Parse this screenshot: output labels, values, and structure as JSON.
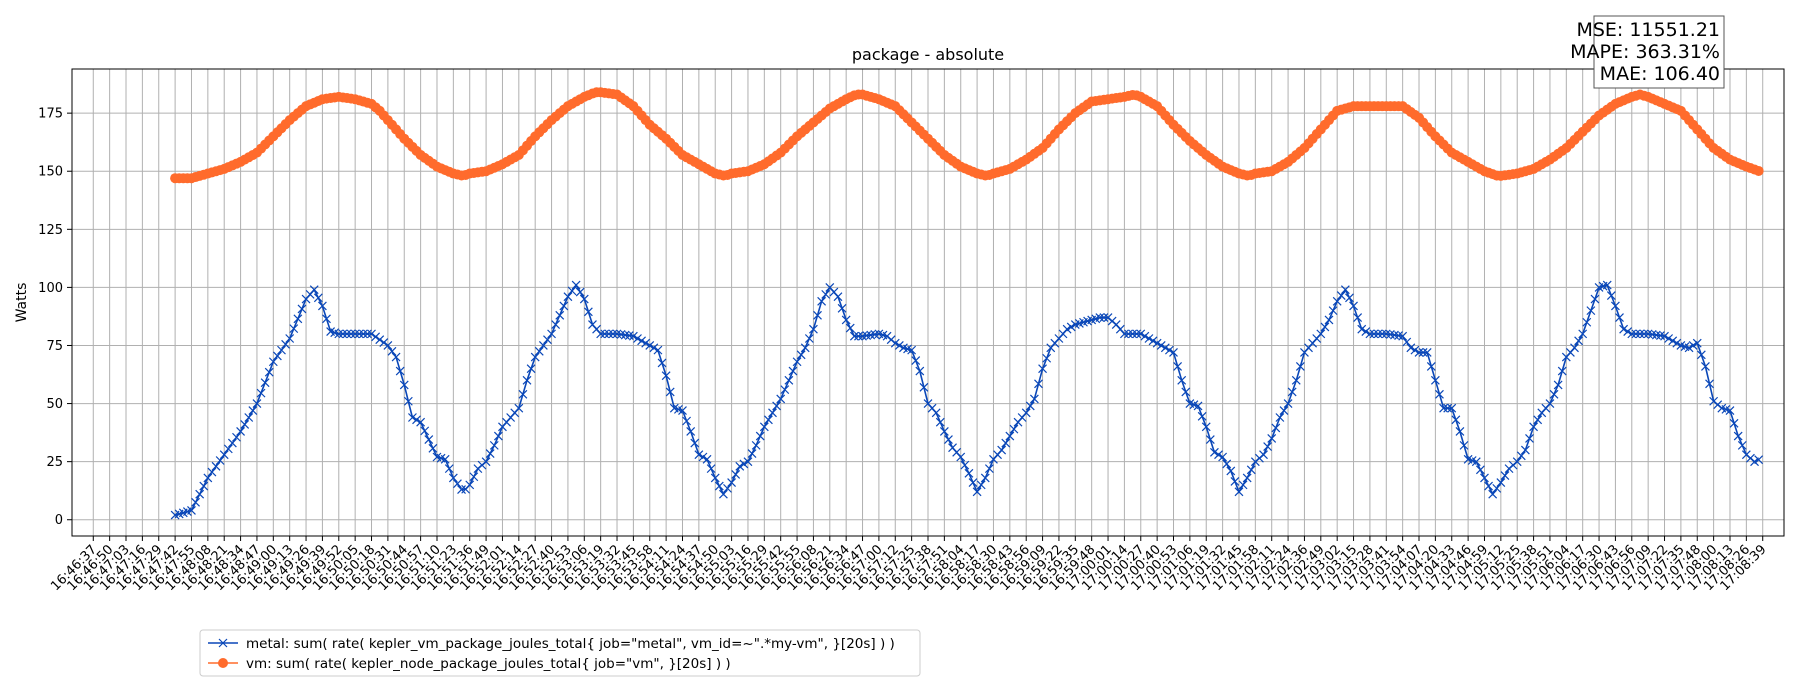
{
  "chart_data": {
    "type": "line",
    "title": "package - absolute",
    "xlabel": "",
    "ylabel": "Watts",
    "ylim": [
      -7,
      194
    ],
    "yticks": [
      0,
      25,
      50,
      75,
      100,
      125,
      150,
      175
    ],
    "grid": true,
    "legend_position": "bottom-left",
    "x_tick_labels": [
      "16:46:37",
      "16:46:50",
      "16:47:03",
      "16:47:16",
      "16:47:29",
      "16:47:42",
      "16:47:55",
      "16:48:08",
      "16:48:21",
      "16:48:34",
      "16:48:47",
      "16:49:00",
      "16:49:13",
      "16:49:26",
      "16:49:39",
      "16:49:52",
      "16:50:05",
      "16:50:18",
      "16:50:31",
      "16:50:44",
      "16:50:57",
      "16:51:10",
      "16:51:23",
      "16:51:36",
      "16:51:49",
      "16:52:01",
      "16:52:14",
      "16:52:27",
      "16:52:40",
      "16:52:53",
      "16:53:06",
      "16:53:19",
      "16:53:32",
      "16:53:45",
      "16:53:58",
      "16:54:11",
      "16:54:24",
      "16:54:37",
      "16:54:50",
      "16:55:03",
      "16:55:16",
      "16:55:29",
      "16:55:42",
      "16:55:55",
      "16:56:08",
      "16:56:21",
      "16:56:34",
      "16:56:47",
      "16:57:00",
      "16:57:12",
      "16:57:25",
      "16:57:38",
      "16:57:51",
      "16:58:04",
      "16:58:17",
      "16:58:30",
      "16:58:43",
      "16:58:56",
      "16:59:09",
      "16:59:22",
      "16:59:35",
      "16:59:48",
      "17:00:01",
      "17:00:14",
      "17:00:27",
      "17:00:40",
      "17:00:53",
      "17:01:06",
      "17:01:19",
      "17:01:32",
      "17:01:45",
      "17:01:58",
      "17:02:11",
      "17:02:24",
      "17:02:36",
      "17:02:49",
      "17:03:02",
      "17:03:15",
      "17:03:28",
      "17:03:41",
      "17:03:54",
      "17:04:07",
      "17:04:20",
      "17:04:33",
      "17:04:46",
      "17:04:59",
      "17:05:12",
      "17:05:25",
      "17:05:38",
      "17:05:51",
      "17:06:04",
      "17:06:17",
      "17:06:30",
      "17:06:43",
      "17:06:56",
      "17:07:09",
      "17:07:22",
      "17:07:35",
      "17:07:48",
      "17:08:00",
      "17:08:13",
      "17:08:26",
      "17:08:39"
    ],
    "x_range_ticks": [
      0,
      102
    ],
    "series": [
      {
        "name": "metal: sum( rate( kepler_vm_package_joules_total{ job=\"metal\", vm_id=~\".*my-vm\", }[20s] ) )",
        "color": "#0a47b8",
        "marker": "x",
        "x_start": 5,
        "x_step": 0.25,
        "keypoints": [
          [
            5,
            2
          ],
          [
            6,
            4
          ],
          [
            7,
            18
          ],
          [
            8,
            28
          ],
          [
            9,
            38
          ],
          [
            10,
            50
          ],
          [
            11,
            68
          ],
          [
            12,
            78
          ],
          [
            13,
            95
          ],
          [
            13.5,
            99
          ],
          [
            14,
            92
          ],
          [
            14.5,
            81
          ],
          [
            15,
            80
          ],
          [
            16,
            80
          ],
          [
            17,
            80
          ],
          [
            18,
            75
          ],
          [
            18.5,
            70
          ],
          [
            19,
            58
          ],
          [
            19.5,
            44
          ],
          [
            20,
            42
          ],
          [
            21,
            27
          ],
          [
            21.5,
            26
          ],
          [
            22,
            18
          ],
          [
            22.6,
            12
          ],
          [
            23,
            15
          ],
          [
            23.5,
            22
          ],
          [
            24,
            25
          ],
          [
            24.5,
            32
          ],
          [
            25,
            40
          ],
          [
            25.5,
            44
          ],
          [
            26,
            48
          ],
          [
            26.5,
            60
          ],
          [
            27,
            70
          ],
          [
            27.5,
            75
          ],
          [
            28,
            80
          ],
          [
            28.5,
            88
          ],
          [
            29,
            96
          ],
          [
            29.5,
            101
          ],
          [
            30,
            95
          ],
          [
            30.5,
            84
          ],
          [
            31,
            80
          ],
          [
            32,
            80
          ],
          [
            33,
            79
          ],
          [
            34,
            75
          ],
          [
            34.5,
            73
          ],
          [
            35,
            62
          ],
          [
            35.5,
            48
          ],
          [
            36,
            47
          ],
          [
            36.5,
            38
          ],
          [
            37,
            28
          ],
          [
            37.5,
            26
          ],
          [
            38,
            18
          ],
          [
            38.5,
            11
          ],
          [
            39,
            16
          ],
          [
            39.5,
            23
          ],
          [
            40,
            25
          ],
          [
            40.5,
            32
          ],
          [
            41,
            40
          ],
          [
            41.5,
            46
          ],
          [
            42,
            52
          ],
          [
            42.5,
            60
          ],
          [
            43,
            68
          ],
          [
            43.5,
            74
          ],
          [
            44,
            82
          ],
          [
            44.5,
            94
          ],
          [
            45,
            100
          ],
          [
            45.5,
            96
          ],
          [
            46,
            86
          ],
          [
            46.5,
            79
          ],
          [
            47,
            79
          ],
          [
            48,
            80
          ],
          [
            48.5,
            79
          ],
          [
            49,
            76
          ],
          [
            49.5,
            74
          ],
          [
            50,
            73
          ],
          [
            50.5,
            64
          ],
          [
            51,
            50
          ],
          [
            51.5,
            46
          ],
          [
            52,
            38
          ],
          [
            52.5,
            31
          ],
          [
            53,
            27
          ],
          [
            53.5,
            20
          ],
          [
            54,
            12
          ],
          [
            54.5,
            18
          ],
          [
            55,
            26
          ],
          [
            55.5,
            30
          ],
          [
            56,
            36
          ],
          [
            56.5,
            42
          ],
          [
            57,
            46
          ],
          [
            57.5,
            52
          ],
          [
            58,
            65
          ],
          [
            58.5,
            74
          ],
          [
            59,
            78
          ],
          [
            59.5,
            82
          ],
          [
            60,
            84
          ],
          [
            60.5,
            85
          ],
          [
            61,
            86
          ],
          [
            61.5,
            87
          ],
          [
            62,
            87
          ],
          [
            62.5,
            84
          ],
          [
            63,
            80
          ],
          [
            64,
            80
          ],
          [
            65,
            76
          ],
          [
            65.5,
            74
          ],
          [
            66,
            72
          ],
          [
            66.5,
            60
          ],
          [
            67,
            50
          ],
          [
            67.5,
            49
          ],
          [
            68,
            40
          ],
          [
            68.5,
            29
          ],
          [
            69,
            27
          ],
          [
            69.5,
            21
          ],
          [
            70,
            12
          ],
          [
            70.5,
            18
          ],
          [
            71,
            25
          ],
          [
            71.5,
            28
          ],
          [
            72,
            35
          ],
          [
            72.5,
            44
          ],
          [
            73,
            50
          ],
          [
            73.5,
            60
          ],
          [
            74,
            72
          ],
          [
            74.5,
            76
          ],
          [
            75,
            80
          ],
          [
            75.5,
            86
          ],
          [
            76,
            94
          ],
          [
            76.5,
            99
          ],
          [
            77,
            92
          ],
          [
            77.5,
            82
          ],
          [
            78,
            80
          ],
          [
            79,
            80
          ],
          [
            80,
            79
          ],
          [
            80.5,
            74
          ],
          [
            81,
            72
          ],
          [
            81.5,
            72
          ],
          [
            82,
            60
          ],
          [
            82.5,
            48
          ],
          [
            83,
            48
          ],
          [
            83.5,
            38
          ],
          [
            84,
            26
          ],
          [
            84.5,
            25
          ],
          [
            85,
            18
          ],
          [
            85.5,
            11
          ],
          [
            86,
            16
          ],
          [
            86.5,
            22
          ],
          [
            87,
            25
          ],
          [
            87.5,
            30
          ],
          [
            88,
            40
          ],
          [
            88.5,
            46
          ],
          [
            89,
            50
          ],
          [
            89.5,
            58
          ],
          [
            90,
            70
          ],
          [
            90.5,
            74
          ],
          [
            91,
            80
          ],
          [
            91.5,
            90
          ],
          [
            92,
            100
          ],
          [
            92.5,
            101
          ],
          [
            93,
            92
          ],
          [
            93.5,
            82
          ],
          [
            94,
            80
          ],
          [
            95,
            80
          ],
          [
            96,
            79
          ],
          [
            96.5,
            77
          ],
          [
            97,
            75
          ],
          [
            97.5,
            74
          ],
          [
            98,
            76
          ],
          [
            98.5,
            66
          ],
          [
            99,
            51
          ],
          [
            99.5,
            48
          ],
          [
            100,
            47
          ],
          [
            100.5,
            36
          ],
          [
            101,
            28
          ],
          [
            101.5,
            25
          ],
          [
            101.8,
            26
          ]
        ]
      },
      {
        "name": "vm: sum( rate( kepler_node_package_joules_total{ job=\"vm\", }[20s] ) )",
        "color": "#ff6b2c",
        "marker": "o",
        "x_start": 5,
        "x_step": 0.25,
        "keypoints": [
          [
            5,
            147
          ],
          [
            6,
            147
          ],
          [
            7,
            149
          ],
          [
            8,
            151
          ],
          [
            9,
            154
          ],
          [
            10,
            158
          ],
          [
            11,
            165
          ],
          [
            12,
            172
          ],
          [
            13,
            178
          ],
          [
            14,
            181
          ],
          [
            15,
            182
          ],
          [
            16,
            181
          ],
          [
            17,
            179
          ],
          [
            17.5,
            176
          ],
          [
            18,
            172
          ],
          [
            19,
            164
          ],
          [
            20,
            157
          ],
          [
            21,
            152
          ],
          [
            22,
            149
          ],
          [
            22.6,
            148
          ],
          [
            23,
            149
          ],
          [
            24,
            150
          ],
          [
            25,
            153
          ],
          [
            26,
            157
          ],
          [
            27,
            165
          ],
          [
            28,
            172
          ],
          [
            29,
            178
          ],
          [
            30,
            182
          ],
          [
            30.7,
            184
          ],
          [
            31,
            184
          ],
          [
            32,
            183
          ],
          [
            33,
            178
          ],
          [
            34,
            170
          ],
          [
            35,
            164
          ],
          [
            36,
            157
          ],
          [
            37,
            153
          ],
          [
            38,
            149
          ],
          [
            38.6,
            148
          ],
          [
            39,
            149
          ],
          [
            40,
            150
          ],
          [
            41,
            153
          ],
          [
            42,
            158
          ],
          [
            43,
            165
          ],
          [
            44,
            171
          ],
          [
            45,
            177
          ],
          [
            46,
            181
          ],
          [
            46.6,
            183
          ],
          [
            47,
            183
          ],
          [
            48,
            181
          ],
          [
            49,
            178
          ],
          [
            50,
            171
          ],
          [
            51,
            164
          ],
          [
            52,
            157
          ],
          [
            53,
            152
          ],
          [
            54,
            149
          ],
          [
            54.6,
            148
          ],
          [
            55,
            149
          ],
          [
            56,
            151
          ],
          [
            57,
            155
          ],
          [
            58,
            160
          ],
          [
            59,
            168
          ],
          [
            60,
            175
          ],
          [
            61,
            180
          ],
          [
            62,
            181
          ],
          [
            63,
            182
          ],
          [
            63.6,
            183
          ],
          [
            64,
            182
          ],
          [
            65,
            178
          ],
          [
            66,
            170
          ],
          [
            67,
            163
          ],
          [
            68,
            157
          ],
          [
            69,
            152
          ],
          [
            70,
            149
          ],
          [
            70.6,
            148
          ],
          [
            71,
            149
          ],
          [
            72,
            150
          ],
          [
            73,
            154
          ],
          [
            74,
            160
          ],
          [
            75,
            168
          ],
          [
            76,
            176
          ],
          [
            77,
            178
          ],
          [
            78,
            178
          ],
          [
            79,
            178
          ],
          [
            80,
            178
          ],
          [
            81,
            173
          ],
          [
            82,
            165
          ],
          [
            83,
            158
          ],
          [
            84,
            154
          ],
          [
            85,
            150
          ],
          [
            85.8,
            148
          ],
          [
            86,
            148
          ],
          [
            87,
            149
          ],
          [
            88,
            151
          ],
          [
            89,
            155
          ],
          [
            90,
            160
          ],
          [
            91,
            167
          ],
          [
            92,
            174
          ],
          [
            93,
            179
          ],
          [
            94,
            182
          ],
          [
            94.5,
            183
          ],
          [
            95,
            182
          ],
          [
            96,
            179
          ],
          [
            97,
            176
          ],
          [
            98,
            168
          ],
          [
            99,
            160
          ],
          [
            100,
            155
          ],
          [
            101,
            152
          ],
          [
            101.8,
            150
          ]
        ]
      }
    ]
  },
  "metrics_box": {
    "lines": [
      "MSE: 11551.21",
      "MAPE: 363.31%",
      "MAE: 106.40"
    ]
  }
}
